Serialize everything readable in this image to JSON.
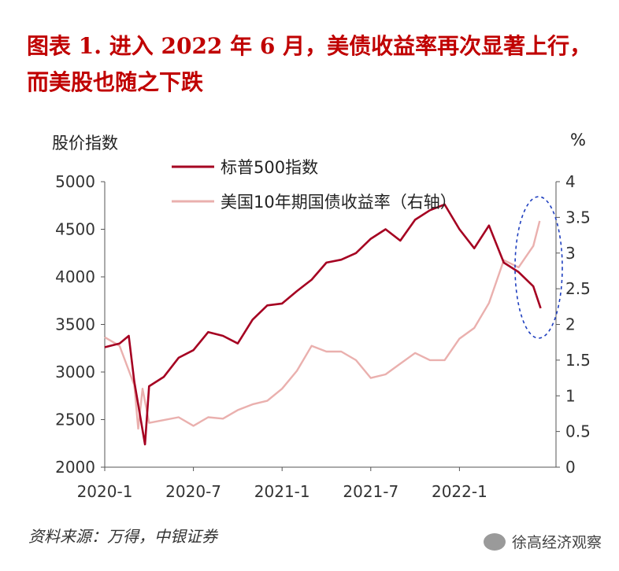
{
  "title": "图表 1.  进入 2022 年 6 月，美债收益率再次显著上行，而美股也随之下跌",
  "source": "资料来源：万得，中银证券",
  "watermark": "徐高经济观察",
  "chart_data": {
    "type": "line",
    "ylabel_left": "股价指数",
    "ylabel_right": "%",
    "ylim_left": [
      2000,
      5000
    ],
    "ylim_right": [
      0,
      4
    ],
    "yticks_left": [
      2000,
      2500,
      3000,
      3500,
      4000,
      4500,
      5000
    ],
    "yticks_right": [
      0,
      0.5,
      1,
      1.5,
      2,
      2.5,
      3,
      3.5,
      4
    ],
    "xticks": [
      "2020-1",
      "2020-7",
      "2021-1",
      "2021-7",
      "2022-1"
    ],
    "xrange": [
      "2020-01",
      "2022-06"
    ],
    "legend_position": "top-left",
    "series": [
      {
        "name": "标普500指数",
        "axis": "left",
        "color": "#a50021",
        "x": [
          "2020-01",
          "2020-02",
          "2020-02-20",
          "2020-03",
          "2020-03-23",
          "2020-04",
          "2020-05",
          "2020-06",
          "2020-07",
          "2020-08",
          "2020-09",
          "2020-10",
          "2020-11",
          "2020-12",
          "2021-01",
          "2021-02",
          "2021-03",
          "2021-04",
          "2021-05",
          "2021-06",
          "2021-07",
          "2021-08",
          "2021-09",
          "2021-10",
          "2021-11",
          "2021-12",
          "2022-01",
          "2022-02",
          "2022-03",
          "2022-04",
          "2022-05",
          "2022-06",
          "2022-06-16"
        ],
        "values": [
          3260,
          3300,
          3380,
          2900,
          2240,
          2850,
          2950,
          3150,
          3230,
          3420,
          3380,
          3300,
          3550,
          3700,
          3720,
          3850,
          3970,
          4150,
          4180,
          4250,
          4400,
          4500,
          4380,
          4600,
          4700,
          4760,
          4500,
          4300,
          4540,
          4150,
          4050,
          3900,
          3670
        ]
      },
      {
        "name": "美国10年期国债收益率（右轴）",
        "axis": "right",
        "color": "#eab0ae",
        "x": [
          "2020-01",
          "2020-02",
          "2020-03",
          "2020-03-09",
          "2020-03-18",
          "2020-04",
          "2020-05",
          "2020-06",
          "2020-07",
          "2020-08",
          "2020-09",
          "2020-10",
          "2020-11",
          "2020-12",
          "2021-01",
          "2021-02",
          "2021-03",
          "2021-04",
          "2021-05",
          "2021-06",
          "2021-07",
          "2021-08",
          "2021-09",
          "2021-10",
          "2021-11",
          "2021-12",
          "2022-01",
          "2022-02",
          "2022-03",
          "2022-04",
          "2022-05",
          "2022-06",
          "2022-06-14"
        ],
        "values": [
          1.82,
          1.7,
          1.15,
          0.54,
          1.1,
          0.62,
          0.66,
          0.7,
          0.58,
          0.7,
          0.68,
          0.8,
          0.88,
          0.93,
          1.1,
          1.35,
          1.7,
          1.62,
          1.62,
          1.5,
          1.25,
          1.3,
          1.45,
          1.6,
          1.5,
          1.5,
          1.8,
          1.95,
          2.3,
          2.9,
          2.8,
          3.1,
          3.45
        ]
      }
    ],
    "annotation": "dashed-ellipse-highlight"
  }
}
